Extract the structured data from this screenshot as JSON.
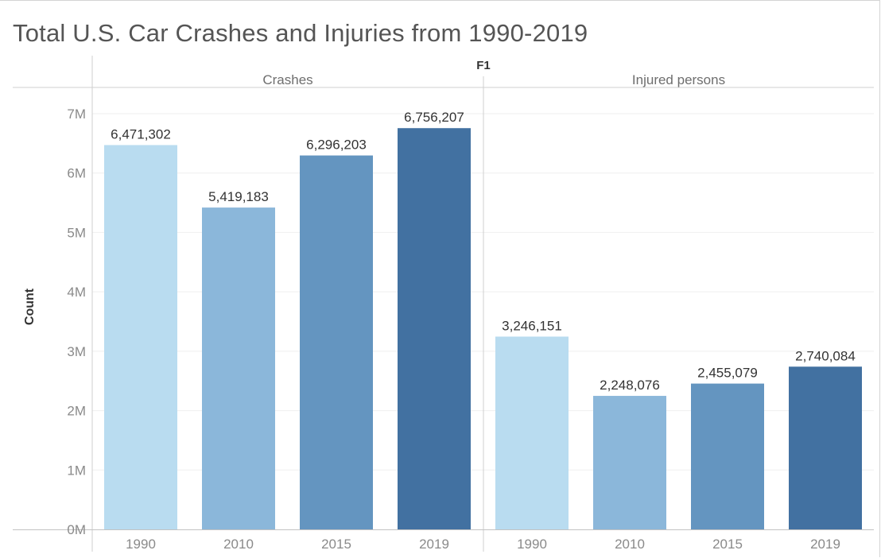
{
  "title": "Total U.S. Car Crashes and Injuries from 1990-2019",
  "chart_data": {
    "type": "bar",
    "column_field": "F1",
    "ylabel": "Count",
    "ylim": [
      0,
      7000000
    ],
    "y_ticks": [
      0,
      1000000,
      2000000,
      3000000,
      4000000,
      5000000,
      6000000,
      7000000
    ],
    "y_tick_labels": [
      "0M",
      "1M",
      "2M",
      "3M",
      "4M",
      "5M",
      "6M",
      "7M"
    ],
    "grid": true,
    "categories": [
      "1990",
      "2010",
      "2015",
      "2019"
    ],
    "category_colors": [
      "#b9dcf0",
      "#8bb7da",
      "#6495c0",
      "#4271a1"
    ],
    "panels": [
      {
        "name": "Crashes",
        "values": [
          6471302,
          5419183,
          6296203,
          6756207
        ],
        "value_labels": [
          "6,471,302",
          "5,419,183",
          "6,296,203",
          "6,756,207"
        ]
      },
      {
        "name": "Injured persons",
        "values": [
          3246151,
          2248076,
          2455079,
          2740084
        ],
        "value_labels": [
          "3,246,151",
          "2,248,076",
          "2,455,079",
          "2,740,084"
        ]
      }
    ]
  }
}
